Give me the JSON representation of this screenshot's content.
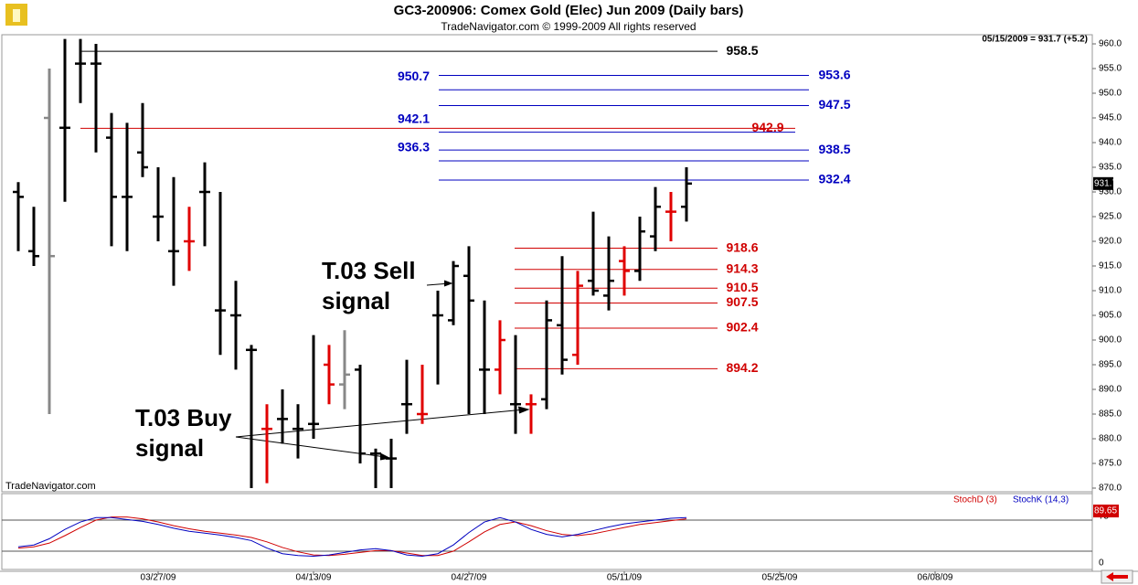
{
  "chart_data": {
    "type": "ohlc",
    "title": "GC3-200906:  Comex Gold (Elec) Jun 2009  (Daily bars)",
    "subtitle": "TradeNavigator.com © 1999-2009 All rights reserved",
    "last_info": "05/15/2009 = 931.7 (+5.2)",
    "watermark": "TradeNavigator.com",
    "x": [
      0,
      1,
      2,
      3,
      4,
      5,
      6,
      7,
      8,
      9,
      10,
      11,
      12,
      13,
      14,
      15,
      16,
      17,
      18,
      19,
      20,
      21,
      22,
      23,
      24,
      25,
      26,
      27,
      28,
      29,
      30,
      31,
      32,
      33,
      34,
      35,
      36,
      37,
      38,
      39,
      40,
      41,
      42,
      43
    ],
    "xlim": [
      -1,
      69
    ],
    "xticks": [
      {
        "value": 9,
        "label": "03/27/09"
      },
      {
        "value": 19,
        "label": "04/13/09"
      },
      {
        "value": 29,
        "label": "04/27/09"
      },
      {
        "value": 39,
        "label": "05/11/09"
      },
      {
        "value": 49,
        "label": "05/25/09"
      },
      {
        "value": 59,
        "label": "06/08/09"
      }
    ],
    "open": [
      930,
      918,
      945,
      943,
      956,
      956,
      941,
      929,
      938,
      925,
      918,
      920,
      930,
      906,
      905,
      898,
      882,
      884,
      882,
      883,
      895,
      891,
      894,
      877,
      876,
      887,
      885,
      905,
      904,
      913,
      894,
      894,
      887,
      887,
      888,
      903,
      897,
      912,
      909,
      916,
      914,
      921,
      926,
      927
    ],
    "high": [
      932,
      927,
      955,
      961,
      961,
      960,
      946,
      944,
      948,
      935,
      933,
      927,
      936,
      930,
      912,
      899,
      887,
      890,
      887,
      901,
      899,
      902,
      895,
      878,
      880,
      896,
      895,
      910,
      916,
      919,
      908,
      904,
      901,
      889,
      908,
      917,
      914,
      926,
      921,
      919,
      925,
      931,
      930,
      935
    ],
    "low": [
      918,
      915,
      885,
      928,
      948,
      938,
      919,
      918,
      933,
      920,
      911,
      914,
      919,
      897,
      894,
      870,
      871,
      879,
      876,
      880,
      887,
      886,
      875,
      870,
      870,
      881,
      883,
      891,
      903,
      885,
      885,
      889,
      881,
      881,
      886,
      893,
      895,
      909,
      906,
      909,
      912,
      918,
      920,
      924
    ],
    "close": [
      929,
      917,
      917,
      943,
      956,
      956,
      929,
      929,
      935,
      925,
      918,
      920,
      930,
      906,
      905,
      898,
      882,
      884,
      882,
      883,
      891,
      893,
      877,
      877,
      876,
      887,
      885,
      905,
      915,
      908,
      894,
      900,
      887,
      887,
      904,
      896,
      911,
      910,
      912,
      914,
      922,
      927,
      926,
      931.7
    ],
    "colors": [
      "#000",
      "#000",
      "#888",
      "#000",
      "#000",
      "#000",
      "#000",
      "#000",
      "#000",
      "#000",
      "#000",
      "#e00000",
      "#000",
      "#000",
      "#000",
      "#000",
      "#e00000",
      "#000",
      "#000",
      "#000",
      "#e00000",
      "#888",
      "#000",
      "#000",
      "#000",
      "#000",
      "#e00000",
      "#000",
      "#000",
      "#000",
      "#000",
      "#e00000",
      "#000",
      "#e00000",
      "#000",
      "#000",
      "#e00000",
      "#000",
      "#000",
      "#e00000",
      "#000",
      "#000",
      "#e00000",
      "#000"
    ],
    "ylim": [
      869,
      961.5
    ],
    "yticks": [
      {
        "value": 870,
        "label": "870.0"
      },
      {
        "value": 875,
        "label": "875.0"
      },
      {
        "value": 880,
        "label": "880.0"
      },
      {
        "value": 885,
        "label": "885.0"
      },
      {
        "value": 890,
        "label": "890.0"
      },
      {
        "value": 895,
        "label": "895.0"
      },
      {
        "value": 900,
        "label": "900.0"
      },
      {
        "value": 905,
        "label": "905.0"
      },
      {
        "value": 910,
        "label": "910.0"
      },
      {
        "value": 915,
        "label": "915.0"
      },
      {
        "value": 920,
        "label": "920.0"
      },
      {
        "value": 925,
        "label": "925.0"
      },
      {
        "value": 930,
        "label": "930.0"
      },
      {
        "value": 935,
        "label": "935.0"
      },
      {
        "value": 940,
        "label": "940.0"
      },
      {
        "value": 945,
        "label": "945.0"
      },
      {
        "value": 950,
        "label": "950.0"
      },
      {
        "value": 955,
        "label": "955.0"
      },
      {
        "value": 960,
        "label": "960.0"
      }
    ],
    "levels": [
      {
        "value": 958.5,
        "color": "#000"
      },
      {
        "value": 953.6,
        "color": "#0000c0"
      },
      {
        "value": 950.7,
        "color": "#0000c0"
      },
      {
        "value": 947.5,
        "color": "#0000c0"
      },
      {
        "value": 942.9,
        "color": "#d00000"
      },
      {
        "value": 942.1,
        "color": "#0000c0"
      },
      {
        "value": 938.5,
        "color": "#0000c0"
      },
      {
        "value": 936.3,
        "color": "#0000c0"
      },
      {
        "value": 932.4,
        "color": "#0000c0"
      },
      {
        "value": 918.6,
        "color": "#d00000"
      },
      {
        "value": 914.3,
        "color": "#d00000"
      },
      {
        "value": 910.5,
        "color": "#d00000"
      },
      {
        "value": 907.5,
        "color": "#d00000"
      },
      {
        "value": 902.4,
        "color": "#d00000"
      },
      {
        "value": 894.2,
        "color": "#d00000"
      }
    ],
    "sell_signal": [
      "T.03 Sell",
      "signal"
    ],
    "buy_signal": [
      "T.03 Buy",
      "signal"
    ],
    "stoch": {
      "ylim": [
        0,
        100
      ],
      "yticks": [
        0,
        75
      ],
      "levels": [
        25,
        75
      ],
      "series": [
        {
          "name": "StochD (3)",
          "color": "#d00000",
          "values": [
            30,
            32,
            38,
            50,
            63,
            75,
            80,
            80,
            77,
            72,
            66,
            61,
            57,
            54,
            51,
            47,
            40,
            31,
            24,
            19,
            18,
            20,
            23,
            26,
            26,
            22,
            18,
            18,
            25,
            40,
            56,
            68,
            72,
            66,
            58,
            52,
            50,
            53,
            58,
            63,
            68,
            71,
            74,
            77
          ]
        },
        {
          "name": "StochK (14,3)",
          "color": "#0000c0",
          "values": [
            32,
            35,
            45,
            60,
            72,
            79,
            79,
            76,
            73,
            68,
            62,
            57,
            54,
            51,
            47,
            42,
            30,
            21,
            18,
            17,
            19,
            23,
            27,
            29,
            26,
            19,
            17,
            21,
            35,
            55,
            72,
            79,
            72,
            60,
            52,
            48,
            52,
            58,
            64,
            69,
            72,
            75,
            78,
            79
          ]
        }
      ],
      "last_label": 89.65
    }
  }
}
